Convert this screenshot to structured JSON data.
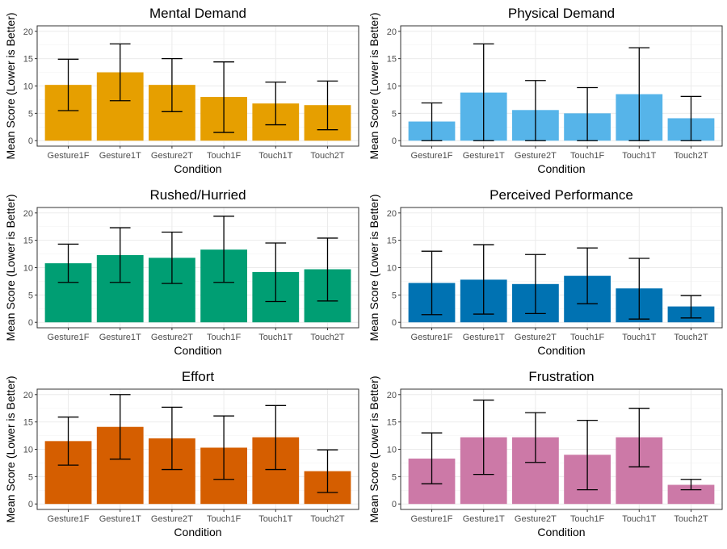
{
  "figure": {
    "y_axis_title": "Mean Score (Lower is Better)",
    "x_axis_title": "Condition"
  },
  "chart_data": [
    {
      "type": "bar",
      "title": "Mental Demand",
      "xlabel": "Condition",
      "ylabel": "Mean Score (Lower is Better)",
      "ylim": [
        0,
        20
      ],
      "yticks": [
        0,
        5,
        10,
        15,
        20
      ],
      "grid": true,
      "color": "#E69F00",
      "categories": [
        "Gesture1F",
        "Gesture1T",
        "Gesture2T",
        "Touch1F",
        "Touch1T",
        "Touch2T"
      ],
      "values": [
        10.2,
        12.5,
        10.2,
        8.0,
        6.8,
        6.5
      ],
      "error_low": [
        5.5,
        7.3,
        5.3,
        1.5,
        2.9,
        2.0
      ],
      "error_high": [
        14.9,
        17.7,
        15.0,
        14.4,
        10.7,
        10.9
      ]
    },
    {
      "type": "bar",
      "title": "Physical Demand",
      "xlabel": "Condition",
      "ylabel": "Mean Score (Lower is Better)",
      "ylim": [
        0,
        20
      ],
      "yticks": [
        0,
        5,
        10,
        15,
        20
      ],
      "grid": true,
      "color": "#56B4E9",
      "categories": [
        "Gesture1F",
        "Gesture1T",
        "Gesture2T",
        "Touch1F",
        "Touch1T",
        "Touch2T"
      ],
      "values": [
        3.5,
        8.8,
        5.6,
        5.0,
        8.5,
        4.1
      ],
      "error_low": [
        0,
        0,
        0,
        0,
        0,
        0
      ],
      "error_high": [
        6.9,
        17.7,
        11.0,
        9.7,
        17.0,
        8.1
      ]
    },
    {
      "type": "bar",
      "title": "Rushed/Hurried",
      "xlabel": "Condition",
      "ylabel": "Mean Score (Lower is Better)",
      "ylim": [
        0,
        20
      ],
      "yticks": [
        0,
        5,
        10,
        15,
        20
      ],
      "grid": true,
      "color": "#009E73",
      "categories": [
        "Gesture1F",
        "Gesture1T",
        "Gesture2T",
        "Touch1F",
        "Touch1T",
        "Touch2T"
      ],
      "values": [
        10.8,
        12.3,
        11.8,
        13.3,
        9.2,
        9.7
      ],
      "error_low": [
        7.3,
        7.3,
        7.1,
        7.3,
        3.8,
        3.9
      ],
      "error_high": [
        14.3,
        17.3,
        16.5,
        19.4,
        14.5,
        15.4
      ]
    },
    {
      "type": "bar",
      "title": "Perceived Performance",
      "xlabel": "Condition",
      "ylabel": "Mean Score (Lower is Better)",
      "ylim": [
        0,
        20
      ],
      "yticks": [
        0,
        5,
        10,
        15,
        20
      ],
      "grid": true,
      "color": "#0072B2",
      "categories": [
        "Gesture1F",
        "Gesture1T",
        "Gesture2T",
        "Touch1F",
        "Touch1T",
        "Touch2T"
      ],
      "values": [
        7.2,
        7.8,
        7.0,
        8.5,
        6.2,
        2.9
      ],
      "error_low": [
        1.4,
        1.5,
        1.6,
        3.4,
        0.6,
        0.8
      ],
      "error_high": [
        13.0,
        14.2,
        12.4,
        13.6,
        11.7,
        4.9
      ]
    },
    {
      "type": "bar",
      "title": "Effort",
      "xlabel": "Condition",
      "ylabel": "Mean Score (Lower is Better)",
      "ylim": [
        0,
        20
      ],
      "yticks": [
        0,
        5,
        10,
        15,
        20
      ],
      "grid": true,
      "color": "#D55E00",
      "categories": [
        "Gesture1F",
        "Gesture1T",
        "Gesture2T",
        "Touch1F",
        "Touch1T",
        "Touch2T"
      ],
      "values": [
        11.5,
        14.1,
        12.0,
        10.3,
        12.2,
        6.0
      ],
      "error_low": [
        7.1,
        8.2,
        6.3,
        4.5,
        6.3,
        2.1
      ],
      "error_high": [
        15.9,
        20.0,
        17.7,
        16.1,
        18.0,
        9.9
      ]
    },
    {
      "type": "bar",
      "title": "Frustration",
      "xlabel": "Condition",
      "ylabel": "Mean Score (Lower is Better)",
      "ylim": [
        0,
        20
      ],
      "yticks": [
        0,
        5,
        10,
        15,
        20
      ],
      "grid": true,
      "color": "#CC79A7",
      "categories": [
        "Gesture1F",
        "Gesture1T",
        "Gesture2T",
        "Touch1F",
        "Touch1T",
        "Touch2T"
      ],
      "values": [
        8.3,
        12.2,
        12.2,
        9.0,
        12.2,
        3.5
      ],
      "error_low": [
        3.7,
        5.4,
        7.6,
        2.6,
        6.8,
        2.6
      ],
      "error_high": [
        13.0,
        19.0,
        16.7,
        15.3,
        17.5,
        4.5
      ]
    }
  ]
}
